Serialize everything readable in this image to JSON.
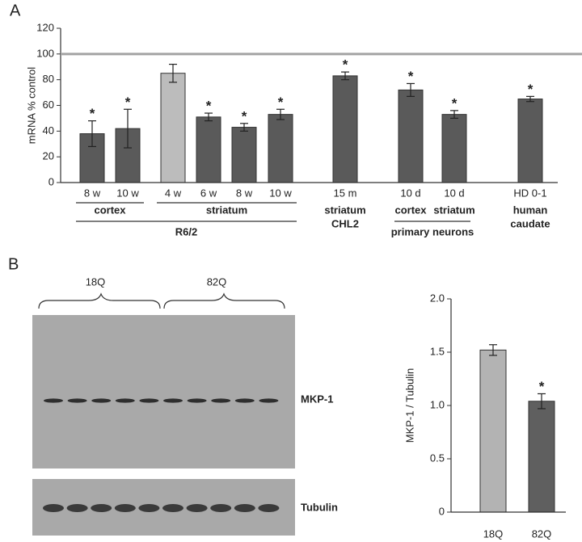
{
  "panels": [
    "A",
    "B"
  ],
  "blot": {
    "lanes": [
      "18Q",
      "82Q"
    ],
    "bands": [
      "MKP-1",
      "Tubulin"
    ]
  },
  "chart_data": [
    {
      "type": "bar",
      "ylabel": "mRNA % control",
      "categories": [
        "8 w",
        "10 w",
        "4 w",
        "6 w",
        "8 w",
        "10 w",
        "15 m",
        "10 d",
        "10 d",
        "HD 0-1"
      ],
      "values": [
        38,
        42,
        85,
        51,
        43,
        53,
        83,
        72,
        53,
        65
      ],
      "errors": [
        10,
        15,
        7,
        3,
        3,
        4,
        3,
        5,
        3,
        2
      ],
      "significance": [
        "*",
        "*",
        null,
        "*",
        "*",
        "*",
        "*",
        "*",
        "*",
        "*"
      ],
      "colors": [
        "#5a5a5a",
        "#5a5a5a",
        "#bcbcbc",
        "#5a5a5a",
        "#5a5a5a",
        "#5a5a5a",
        "#5a5a5a",
        "#5a5a5a",
        "#5a5a5a",
        "#5a5a5a"
      ],
      "ylim": [
        0,
        120
      ],
      "yticks": [
        0,
        20,
        40,
        60,
        80,
        100,
        120
      ],
      "reference_line": 100,
      "reference_color": "#a3a3a3",
      "groups": [
        {
          "label": [
            "cortex"
          ],
          "first": 0,
          "last": 1
        },
        {
          "label": [
            "striatum"
          ],
          "first": 2,
          "last": 5
        },
        {
          "label": [
            "R6/2"
          ],
          "first": 0,
          "last": 5
        },
        {
          "label": [
            "striatum",
            "CHL2"
          ],
          "first": 6,
          "last": 6
        },
        {
          "label": [
            "cortex"
          ],
          "first": 7,
          "last": 7
        },
        {
          "label": [
            "striatum"
          ],
          "first": 8,
          "last": 8
        },
        {
          "label": [
            "primary neurons"
          ],
          "first": 7,
          "last": 8
        },
        {
          "label": [
            "human",
            "caudate"
          ],
          "first": 9,
          "last": 9
        }
      ]
    },
    {
      "type": "bar",
      "ylabel": "MKP-1 / Tubulin",
      "categories": [
        "18Q",
        "82Q"
      ],
      "values": [
        1.52,
        1.04
      ],
      "errors": [
        0.05,
        0.07
      ],
      "significance": [
        null,
        "*"
      ],
      "colors": [
        "#b3b3b3",
        "#5f5f5f"
      ],
      "ylim": [
        0,
        2
      ],
      "yticks": [
        0,
        {
          "value": 0.5,
          "label": "0.5"
        },
        {
          "value": 1,
          "label": "1.0"
        },
        {
          "value": 1.5,
          "label": "1.5"
        },
        {
          "value": 2,
          "label": "2.0"
        }
      ]
    }
  ]
}
